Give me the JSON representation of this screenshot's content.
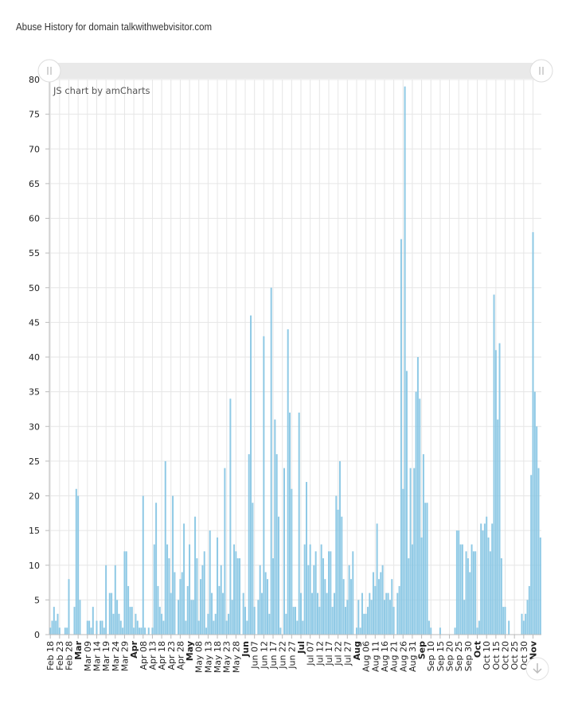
{
  "page": {
    "title": "Abuse History for domain talkwithwebvisitor.com",
    "credit": "JS chart by amCharts"
  },
  "icons": {
    "scrollbar_grip_left": "grip-lines-icon",
    "scrollbar_grip_right": "grip-lines-icon",
    "corner_button": "arrow-down-icon"
  },
  "chart_data": {
    "type": "bar",
    "title": "",
    "xlabel": "",
    "ylabel": "",
    "ylim": [
      0,
      80
    ],
    "yticks": [
      0,
      5,
      10,
      15,
      20,
      25,
      30,
      35,
      40,
      45,
      50,
      55,
      60,
      65,
      70,
      75,
      80
    ],
    "color": "#88c6e4",
    "grid": true,
    "x_start": "2024-02-18",
    "x_end": "2024-11-03",
    "xtick_labels": [
      "Feb 18",
      "Feb 23",
      "Feb 28",
      "Mar",
      "Mar 09",
      "Mar 14",
      "Mar 19",
      "Mar 24",
      "Mar 29",
      "Apr",
      "Apr 08",
      "Apr 13",
      "Apr 18",
      "Apr 23",
      "Apr 28",
      "May",
      "May 08",
      "May 13",
      "May 18",
      "May 23",
      "May 28",
      "Jun",
      "Jun 07",
      "Jun 12",
      "Jun 17",
      "Jun 22",
      "Jun 27",
      "Jul",
      "Jul 07",
      "Jul 12",
      "Jul 17",
      "Jul 22",
      "Jul 27",
      "Aug",
      "Aug 06",
      "Aug 11",
      "Aug 16",
      "Aug 21",
      "Aug 26",
      "Aug 31",
      "Sep",
      "Sep 10",
      "Sep 15",
      "Sep 20",
      "Sep 25",
      "Sep 30",
      "Oct",
      "Oct 10",
      "Oct 15",
      "Oct 20",
      "Oct 25",
      "Oct 30",
      "Nov"
    ],
    "xtick_bold": [
      "Mar",
      "Apr",
      "May",
      "Jun",
      "Jul",
      "Aug",
      "Sep",
      "Oct",
      "Nov"
    ],
    "values": [
      1,
      2,
      4,
      2,
      3,
      1,
      0,
      0,
      1,
      1,
      8,
      0,
      0,
      4,
      21,
      20,
      5,
      0,
      0,
      0,
      2,
      2,
      1,
      4,
      0,
      2,
      0,
      2,
      2,
      1,
      10,
      0,
      6,
      6,
      3,
      10,
      5,
      3,
      2,
      1,
      12,
      12,
      7,
      4,
      4,
      1,
      3,
      2,
      1,
      1,
      20,
      1,
      0,
      1,
      0,
      1,
      13,
      19,
      7,
      4,
      3,
      2,
      25,
      13,
      11,
      6,
      20,
      9,
      0,
      5,
      8,
      9,
      16,
      2,
      7,
      13,
      5,
      5,
      17,
      11,
      2,
      8,
      10,
      12,
      1,
      3,
      15,
      6,
      2,
      3,
      14,
      7,
      10,
      6,
      24,
      2,
      3,
      34,
      5,
      13,
      12,
      11,
      11,
      0,
      6,
      4,
      2,
      26,
      46,
      19,
      4,
      0,
      5,
      10,
      6,
      43,
      9,
      8,
      3,
      50,
      11,
      31,
      26,
      17,
      1,
      0,
      24,
      3,
      44,
      32,
      21,
      4,
      4,
      2,
      32,
      6,
      2,
      13,
      22,
      10,
      13,
      6,
      10,
      12,
      6,
      4,
      13,
      11,
      8,
      6,
      12,
      12,
      4,
      6,
      20,
      18,
      25,
      17,
      8,
      4,
      5,
      10,
      8,
      12,
      0,
      1,
      5,
      1,
      6,
      3,
      3,
      4,
      6,
      5,
      9,
      7,
      16,
      8,
      9,
      10,
      5,
      6,
      6,
      5,
      8,
      4,
      0,
      6,
      7,
      57,
      21,
      79,
      38,
      11,
      24,
      13,
      24,
      35,
      40,
      34,
      14,
      26,
      19,
      19,
      2,
      1,
      0,
      0,
      0,
      0,
      1,
      0,
      0,
      0,
      0,
      0,
      0,
      0,
      1,
      15,
      15,
      13,
      13,
      5,
      12,
      11,
      9,
      13,
      12,
      12,
      1,
      2,
      16,
      15,
      16,
      17,
      14,
      12,
      16,
      49,
      41,
      31,
      42,
      11,
      4,
      4,
      0,
      2,
      0,
      0,
      0,
      0,
      0,
      0,
      3,
      2,
      3,
      5,
      7,
      23,
      58,
      35,
      30,
      24,
      14
    ]
  }
}
